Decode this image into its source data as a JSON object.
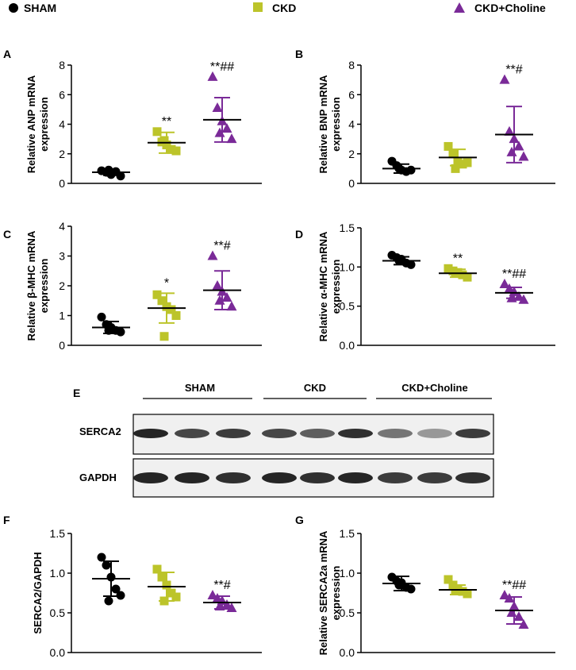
{
  "colors": {
    "sham": "#000000",
    "ckd": "#bcc42a",
    "choline": "#7a2a98"
  },
  "legend": [
    {
      "label": "SHAM",
      "marker": "circle",
      "color": "#000000"
    },
    {
      "label": "CKD",
      "marker": "square",
      "color": "#bcc42a"
    },
    {
      "label": "CKD+Choline",
      "marker": "triangle",
      "color": "#7a2a98"
    }
  ],
  "blot": {
    "panel_label": "E",
    "groups": [
      "SHAM",
      "CKD",
      "CKD+Choline"
    ],
    "rows": [
      {
        "label": "SERCA2",
        "intensity": [
          0.95,
          0.8,
          0.85,
          0.8,
          0.7,
          0.9,
          0.6,
          0.45,
          0.85
        ]
      },
      {
        "label": "GAPDH",
        "intensity": [
          0.95,
          0.95,
          0.9,
          0.95,
          0.9,
          0.95,
          0.85,
          0.85,
          0.9
        ]
      }
    ]
  },
  "chart_data": [
    {
      "panel": "A",
      "type": "scatter",
      "ylabel": [
        "Relative ANP mRNA",
        "expression"
      ],
      "ylim": [
        0,
        8
      ],
      "yticks": [
        "0",
        "2",
        "4",
        "6",
        "8"
      ],
      "groups": [
        {
          "name": "SHAM",
          "marker": "circle",
          "color": "#000000",
          "mean": 0.75,
          "sd": 0.2,
          "points": [
            0.85,
            0.75,
            0.6,
            0.8,
            0.5,
            0.9
          ],
          "annotation": ""
        },
        {
          "name": "CKD",
          "marker": "square",
          "color": "#bcc42a",
          "mean": 2.75,
          "sd": 0.7,
          "points": [
            3.5,
            2.8,
            2.6,
            2.3,
            2.2,
            2.9
          ],
          "annotation": "**"
        },
        {
          "name": "CKD+Choline",
          "marker": "triangle",
          "color": "#7a2a98",
          "mean": 4.3,
          "sd": 1.5,
          "points": [
            7.2,
            5.1,
            4.2,
            3.7,
            3.0,
            3.4
          ],
          "annotation": "**##"
        }
      ]
    },
    {
      "panel": "B",
      "type": "scatter",
      "ylabel": [
        "Relative BNP mRNA",
        "expression"
      ],
      "ylim": [
        0,
        8
      ],
      "yticks": [
        "0",
        "2",
        "4",
        "6",
        "8"
      ],
      "groups": [
        {
          "name": "SHAM",
          "marker": "circle",
          "color": "#000000",
          "mean": 1.0,
          "sd": 0.3,
          "points": [
            1.5,
            1.2,
            0.9,
            0.8,
            0.9,
            1.0
          ],
          "annotation": ""
        },
        {
          "name": "CKD",
          "marker": "square",
          "color": "#bcc42a",
          "mean": 1.75,
          "sd": 0.55,
          "points": [
            2.5,
            2.0,
            1.5,
            1.3,
            1.4,
            1.0
          ],
          "annotation": ""
        },
        {
          "name": "CKD+Choline",
          "marker": "triangle",
          "color": "#7a2a98",
          "mean": 3.3,
          "sd": 1.9,
          "points": [
            7.0,
            3.5,
            3.0,
            2.5,
            1.8,
            2.1
          ],
          "annotation": "**#"
        }
      ]
    },
    {
      "panel": "C",
      "type": "scatter",
      "ylabel": [
        "Relative β-MHC mRNA",
        "expression"
      ],
      "ylim": [
        0,
        4
      ],
      "yticks": [
        "0",
        "1",
        "2",
        "3",
        "4"
      ],
      "groups": [
        {
          "name": "SHAM",
          "marker": "circle",
          "color": "#000000",
          "mean": 0.6,
          "sd": 0.2,
          "points": [
            0.95,
            0.7,
            0.6,
            0.5,
            0.45,
            0.5
          ],
          "annotation": ""
        },
        {
          "name": "CKD",
          "marker": "square",
          "color": "#bcc42a",
          "mean": 1.25,
          "sd": 0.5,
          "points": [
            1.7,
            1.5,
            1.3,
            1.2,
            1.0,
            0.3
          ],
          "annotation": "*"
        },
        {
          "name": "CKD+Choline",
          "marker": "triangle",
          "color": "#7a2a98",
          "mean": 1.85,
          "sd": 0.65,
          "points": [
            3.0,
            2.0,
            1.8,
            1.6,
            1.3,
            1.5
          ],
          "annotation": "**#"
        }
      ]
    },
    {
      "panel": "D",
      "type": "scatter",
      "ylabel": [
        "Relative α-MHC mRNA",
        "expression"
      ],
      "ylim": [
        0,
        1.5
      ],
      "yticks": [
        "0.0",
        "0.5",
        "1.0",
        "1.5"
      ],
      "groups": [
        {
          "name": "SHAM",
          "marker": "circle",
          "color": "#000000",
          "mean": 1.08,
          "sd": 0.05,
          "points": [
            1.15,
            1.12,
            1.1,
            1.05,
            1.03,
            1.08
          ],
          "annotation": ""
        },
        {
          "name": "CKD",
          "marker": "square",
          "color": "#bcc42a",
          "mean": 0.92,
          "sd": 0.05,
          "points": [
            0.98,
            0.95,
            0.93,
            0.9,
            0.87,
            0.92
          ],
          "annotation": "**"
        },
        {
          "name": "CKD+Choline",
          "marker": "triangle",
          "color": "#7a2a98",
          "mean": 0.67,
          "sd": 0.07,
          "points": [
            0.78,
            0.72,
            0.68,
            0.62,
            0.58,
            0.6
          ],
          "annotation": "**##"
        }
      ]
    },
    {
      "panel": "F",
      "type": "scatter",
      "ylabel": [
        "SERCA2/GAPDH"
      ],
      "ylim": [
        0,
        1.5
      ],
      "yticks": [
        "0.0",
        "0.5",
        "1.0",
        "1.5"
      ],
      "groups": [
        {
          "name": "SHAM",
          "marker": "circle",
          "color": "#000000",
          "mean": 0.93,
          "sd": 0.22,
          "points": [
            1.2,
            1.1,
            0.95,
            0.8,
            0.72,
            0.65
          ],
          "annotation": ""
        },
        {
          "name": "CKD",
          "marker": "square",
          "color": "#bcc42a",
          "mean": 0.83,
          "sd": 0.18,
          "points": [
            1.05,
            0.95,
            0.85,
            0.75,
            0.7,
            0.65
          ],
          "annotation": ""
        },
        {
          "name": "CKD+Choline",
          "marker": "triangle",
          "color": "#7a2a98",
          "mean": 0.63,
          "sd": 0.08,
          "points": [
            0.72,
            0.68,
            0.65,
            0.6,
            0.56,
            0.58
          ],
          "annotation": "**#"
        }
      ]
    },
    {
      "panel": "G",
      "type": "scatter",
      "ylabel": [
        "Relative SERCA2a mRNA",
        "expression"
      ],
      "ylim": [
        0,
        1.5
      ],
      "yticks": [
        "0.0",
        "0.5",
        "1.0",
        "1.5"
      ],
      "groups": [
        {
          "name": "SHAM",
          "marker": "circle",
          "color": "#000000",
          "mean": 0.87,
          "sd": 0.09,
          "points": [
            0.95,
            0.9,
            0.88,
            0.82,
            0.8,
            0.85
          ],
          "annotation": ""
        },
        {
          "name": "CKD",
          "marker": "square",
          "color": "#bcc42a",
          "mean": 0.79,
          "sd": 0.06,
          "points": [
            0.92,
            0.85,
            0.8,
            0.77,
            0.74,
            0.78
          ],
          "annotation": ""
        },
        {
          "name": "CKD+Choline",
          "marker": "triangle",
          "color": "#7a2a98",
          "mean": 0.53,
          "sd": 0.17,
          "points": [
            0.72,
            0.68,
            0.58,
            0.45,
            0.35,
            0.5
          ],
          "annotation": "**##"
        }
      ]
    }
  ]
}
